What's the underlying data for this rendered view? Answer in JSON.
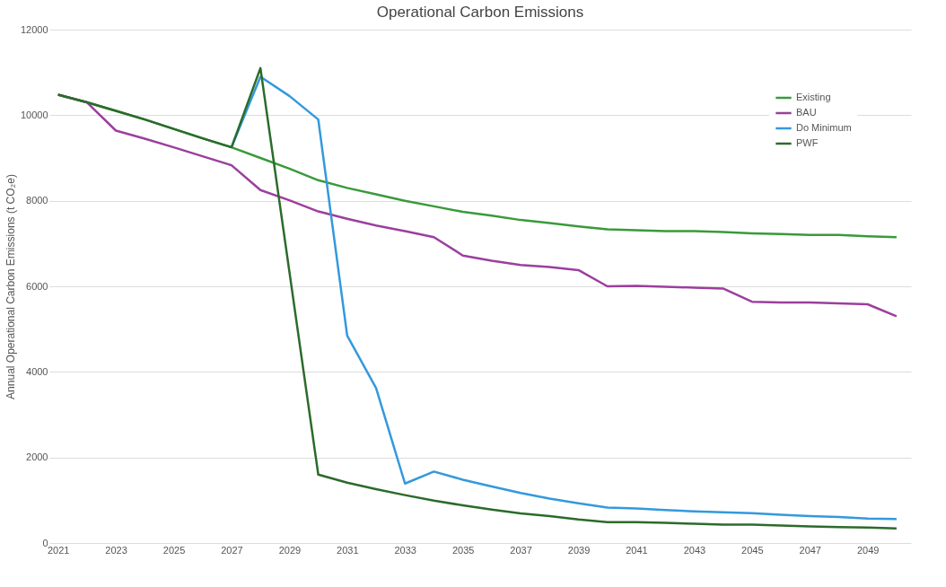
{
  "chart_data": {
    "type": "line",
    "title": "Operational Carbon Emissions",
    "ylabel": "Annual Operational Carbon Emissions (t CO₂e)",
    "x": [
      2021,
      2022,
      2023,
      2024,
      2025,
      2026,
      2027,
      2028,
      2029,
      2030,
      2031,
      2032,
      2033,
      2034,
      2035,
      2036,
      2037,
      2038,
      2039,
      2040,
      2041,
      2042,
      2043,
      2044,
      2045,
      2046,
      2047,
      2048,
      2049,
      2050
    ],
    "xlim": [
      2020.7,
      2050.5
    ],
    "xticks": [
      2021,
      2023,
      2025,
      2027,
      2029,
      2031,
      2033,
      2035,
      2037,
      2039,
      2041,
      2043,
      2045,
      2047,
      2049
    ],
    "ylim": [
      0,
      12000
    ],
    "yticks": [
      0,
      2000,
      4000,
      6000,
      8000,
      10000,
      12000
    ],
    "grid": "y",
    "legend": "top right",
    "line_style": "solid",
    "series": [
      {
        "name": "Existing",
        "color": "#3a9a3a",
        "values": [
          10480,
          10300,
          10100,
          9900,
          9680,
          9460,
          9250,
          9000,
          8750,
          8480,
          8300,
          8150,
          8000,
          7870,
          7740,
          7650,
          7550,
          7480,
          7400,
          7330,
          7310,
          7290,
          7290,
          7270,
          7240,
          7220,
          7200,
          7200,
          7170,
          7150
        ]
      },
      {
        "name": "BAU",
        "color": "#9b3f9e",
        "values": [
          10480,
          10300,
          9640,
          9450,
          9250,
          9040,
          8830,
          8250,
          8010,
          7750,
          7580,
          7420,
          7290,
          7150,
          6720,
          6600,
          6500,
          6450,
          6380,
          6000,
          6010,
          5990,
          5970,
          5950,
          5640,
          5620,
          5620,
          5600,
          5580,
          5300
        ]
      },
      {
        "name": "Do Minimum",
        "color": "#3399dd",
        "values": [
          null,
          null,
          null,
          null,
          null,
          null,
          9250,
          10900,
          10450,
          9900,
          4850,
          3620,
          1390,
          1670,
          1480,
          1320,
          1170,
          1040,
          930,
          830,
          810,
          770,
          740,
          720,
          700,
          660,
          630,
          610,
          570,
          560
        ]
      },
      {
        "name": "PWF",
        "color": "#2b6b2b",
        "values": [
          10480,
          10300,
          10100,
          9900,
          9680,
          9460,
          9250,
          11100,
          6350,
          1600,
          1410,
          1260,
          1120,
          990,
          880,
          780,
          690,
          630,
          550,
          490,
          490,
          470,
          450,
          430,
          430,
          410,
          390,
          370,
          360,
          340
        ]
      }
    ]
  }
}
